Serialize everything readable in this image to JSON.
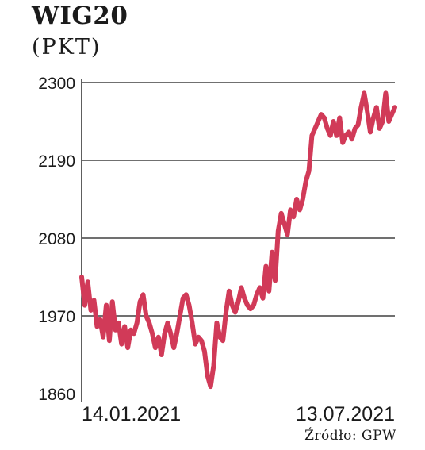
{
  "header": {
    "title": "WIG20",
    "subtitle": "(PKT)"
  },
  "footer": {
    "source": "Źródło: GPW"
  },
  "colors": {
    "line": "#d13a58",
    "grid": "#1b1b1b",
    "text": "#1b1b1b"
  },
  "chart_data": {
    "type": "line",
    "title": "WIG20",
    "ylabel": "(PKT)",
    "ylim": [
      1860,
      2300
    ],
    "yticks": [
      1860,
      1970,
      2080,
      2190,
      2300
    ],
    "ytick_labels": [
      "1860",
      "1970",
      "2080",
      "2190",
      "2300"
    ],
    "grid": true,
    "x_labels": [
      "14.01.2021",
      "13.07.2021"
    ],
    "series": [
      {
        "values": [
          2025,
          1985,
          2018,
          1978,
          1992,
          1955,
          1965,
          1940,
          1985,
          1935,
          1990,
          1950,
          1960,
          1930,
          1955,
          1925,
          1950,
          1945,
          1960,
          1990,
          2000,
          1970,
          1960,
          1945,
          1925,
          1940,
          1915,
          1945,
          1960,
          1945,
          1925,
          1945,
          1970,
          1995,
          2000,
          1985,
          1960,
          1930,
          1940,
          1935,
          1920,
          1885,
          1870,
          1900,
          1960,
          1940,
          1935,
          1975,
          2005,
          1985,
          1975,
          1990,
          2010,
          1995,
          1985,
          1980,
          1985,
          2000,
          2010,
          1995,
          2040,
          2005,
          2060,
          2020,
          2090,
          2115,
          2100,
          2085,
          2120,
          2110,
          2135,
          2120,
          2135,
          2160,
          2175,
          2225,
          2235,
          2245,
          2255,
          2250,
          2235,
          2225,
          2245,
          2225,
          2250,
          2215,
          2225,
          2230,
          2220,
          2235,
          2240,
          2265,
          2285,
          2260,
          2230,
          2250,
          2265,
          2235,
          2245,
          2285,
          2245,
          2255,
          2265
        ]
      }
    ]
  }
}
